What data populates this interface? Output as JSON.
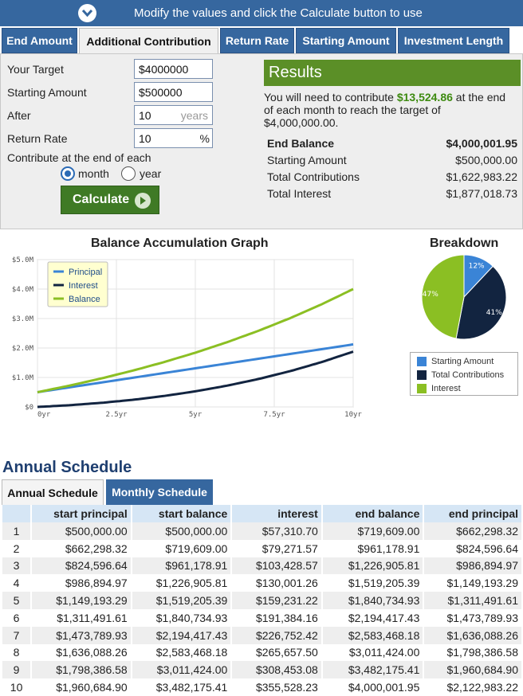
{
  "banner": {
    "text": "Modify the values and click the Calculate button to use"
  },
  "tabs": [
    {
      "label": "End Amount",
      "active": false
    },
    {
      "label": "Additional Contribution",
      "active": true
    },
    {
      "label": "Return Rate",
      "active": false
    },
    {
      "label": "Starting Amount",
      "active": false
    },
    {
      "label": "Investment Length",
      "active": false
    }
  ],
  "form": {
    "target_label": "Your Target",
    "target_value": "$4000000",
    "starting_label": "Starting Amount",
    "starting_value": "$500000",
    "after_label": "After",
    "after_value": "10",
    "after_unit": "years",
    "rate_label": "Return Rate",
    "rate_value": "10",
    "rate_unit": "%",
    "contribute_label": "Contribute at the end of each",
    "opt_month": "month",
    "opt_year": "year",
    "selected": "month",
    "calculate_label": "Calculate"
  },
  "results": {
    "title": "Results",
    "text_pre": "You will need to contribute ",
    "amount": "$13,524.86",
    "text_post": " at the end of each month to reach the target of $4,000,000.00.",
    "rows": [
      {
        "label": "End Balance",
        "value": "$4,000,001.95",
        "bold": true
      },
      {
        "label": "Starting Amount",
        "value": "$500,000.00"
      },
      {
        "label": "Total Contributions",
        "value": "$1,622,983.22"
      },
      {
        "label": "Total Interest",
        "value": "$1,877,018.73"
      }
    ]
  },
  "colors": {
    "principal": "#3a84d6",
    "interest": "#122440",
    "balance": "#8bbf23",
    "accent": "#36679f"
  },
  "chart_data": [
    {
      "type": "line",
      "title": "Balance Accumulation Graph",
      "x": [
        0,
        1,
        2,
        3,
        4,
        5,
        6,
        7,
        8,
        9,
        10
      ],
      "x_ticks": [
        "0yr",
        "2.5yr",
        "5yr",
        "7.5yr",
        "10yr"
      ],
      "y_ticks": [
        "$0",
        "$1.0M",
        "$2.0M",
        "$3.0M",
        "$4.0M",
        "$5.0M"
      ],
      "ylim": [
        0,
        5000000
      ],
      "xlim": [
        0,
        10
      ],
      "legend_position": "top-left",
      "series": [
        {
          "name": "Principal",
          "color": "#3a84d6",
          "values": [
            500000,
            662298.32,
            824596.64,
            986894.97,
            1149193.29,
            1311491.61,
            1473789.93,
            1636088.26,
            1798386.58,
            1960684.9,
            2122983.22
          ]
        },
        {
          "name": "Interest",
          "color": "#122440",
          "values": [
            0,
            57310.7,
            136582.27,
            240010.84,
            370012.1,
            529243.32,
            720627.48,
            947379.9,
            1213037.4,
            1521490.48,
            1877018.73
          ]
        },
        {
          "name": "Balance",
          "color": "#8bbf23",
          "values": [
            500000,
            719609.0,
            961178.91,
            1226905.81,
            1519205.39,
            1840734.93,
            2194417.43,
            2583468.18,
            3011424.0,
            3482175.41,
            4000001.95
          ]
        }
      ]
    },
    {
      "type": "pie",
      "title": "Breakdown",
      "slices": [
        {
          "name": "Starting Amount",
          "percent": 12,
          "label": "12%",
          "color": "#3a84d6"
        },
        {
          "name": "Total Contributions",
          "percent": 41,
          "label": "41%",
          "color": "#122440"
        },
        {
          "name": "Interest",
          "percent": 47,
          "label": "47%",
          "color": "#8bbf23"
        }
      ],
      "legend_position": "bottom"
    }
  ],
  "schedule": {
    "title": "Annual Schedule",
    "tab_annual": "Annual Schedule",
    "tab_monthly": "Monthly Schedule",
    "columns": [
      "",
      "start principal",
      "start balance",
      "interest",
      "end balance",
      "end principal"
    ],
    "rows": [
      [
        "1",
        "$500,000.00",
        "$500,000.00",
        "$57,310.70",
        "$719,609.00",
        "$662,298.32"
      ],
      [
        "2",
        "$662,298.32",
        "$719,609.00",
        "$79,271.57",
        "$961,178.91",
        "$824,596.64"
      ],
      [
        "3",
        "$824,596.64",
        "$961,178.91",
        "$103,428.57",
        "$1,226,905.81",
        "$986,894.97"
      ],
      [
        "4",
        "$986,894.97",
        "$1,226,905.81",
        "$130,001.26",
        "$1,519,205.39",
        "$1,149,193.29"
      ],
      [
        "5",
        "$1,149,193.29",
        "$1,519,205.39",
        "$159,231.22",
        "$1,840,734.93",
        "$1,311,491.61"
      ],
      [
        "6",
        "$1,311,491.61",
        "$1,840,734.93",
        "$191,384.16",
        "$2,194,417.43",
        "$1,473,789.93"
      ],
      [
        "7",
        "$1,473,789.93",
        "$2,194,417.43",
        "$226,752.42",
        "$2,583,468.18",
        "$1,636,088.26"
      ],
      [
        "8",
        "$1,636,088.26",
        "$2,583,468.18",
        "$265,657.50",
        "$3,011,424.00",
        "$1,798,386.58"
      ],
      [
        "9",
        "$1,798,386.58",
        "$3,011,424.00",
        "$308,453.08",
        "$3,482,175.41",
        "$1,960,684.90"
      ],
      [
        "10",
        "$1,960,684.90",
        "$3,482,175.41",
        "$355,528.23",
        "$4,000,001.95",
        "$2,122,983.22"
      ]
    ]
  }
}
